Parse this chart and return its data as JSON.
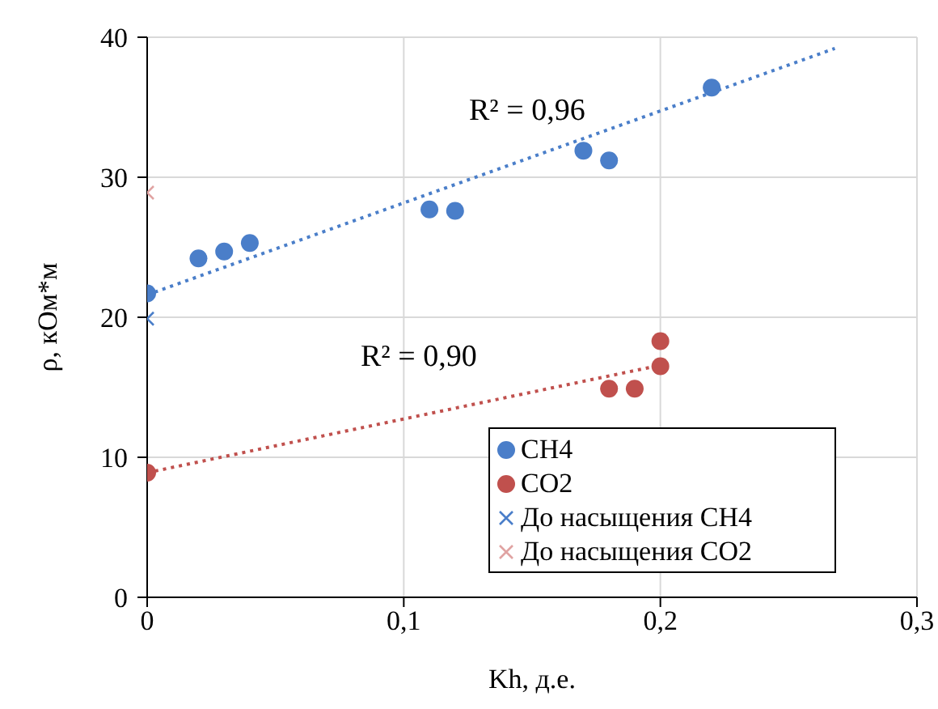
{
  "chart_data": {
    "type": "scatter",
    "xlabel": "Kh, д.е.",
    "ylabel": "ρ, кОм*м",
    "xlim": [
      0,
      0.3
    ],
    "xticks": [
      {
        "value": 0,
        "label": "0"
      },
      {
        "value": 0.1,
        "label": "0,1"
      },
      {
        "value": 0.2,
        "label": "0,2"
      },
      {
        "value": 0.3,
        "label": "0,3"
      }
    ],
    "ylim": [
      0,
      40
    ],
    "yticks": [
      0,
      10,
      20,
      30,
      40
    ],
    "grid": true,
    "legend": "bottom right",
    "series": [
      {
        "name": "CH4",
        "color": "#4a7ec9",
        "marker": "circle",
        "x": [
          0,
          0.02,
          0.03,
          0.04,
          0.11,
          0.12,
          0.17,
          0.18,
          0.22
        ],
        "values": [
          21.7,
          24.2,
          24.7,
          25.3,
          27.7,
          27.6,
          31.9,
          31.2,
          36.4
        ]
      },
      {
        "name": "CO2",
        "color": "#c0504d",
        "marker": "circle",
        "x": [
          0,
          0.18,
          0.19,
          0.2,
          0.2
        ],
        "values": [
          8.9,
          14.9,
          14.9,
          18.3,
          16.5
        ]
      },
      {
        "name": "До насыщения CH4",
        "color": "#4a7ec9",
        "marker": "cross",
        "x": [
          0
        ],
        "values": [
          19.9
        ]
      },
      {
        "name": "До насыщения CO2",
        "color": "#e0a3a2",
        "marker": "cross",
        "x": [
          0
        ],
        "values": [
          28.9
        ]
      },
      {
        "type": "line",
        "color": "#4a7ec9",
        "line_style": "dotted",
        "x": [
          0,
          0.268
        ],
        "values": [
          21.6,
          39.2
        ]
      },
      {
        "type": "line",
        "color": "#c0504d",
        "line_style": "dotted",
        "x": [
          0,
          0.198
        ],
        "values": [
          8.9,
          16.5
        ]
      }
    ],
    "annotations": [
      "R² = 0,96",
      "R² = 0,90"
    ]
  }
}
